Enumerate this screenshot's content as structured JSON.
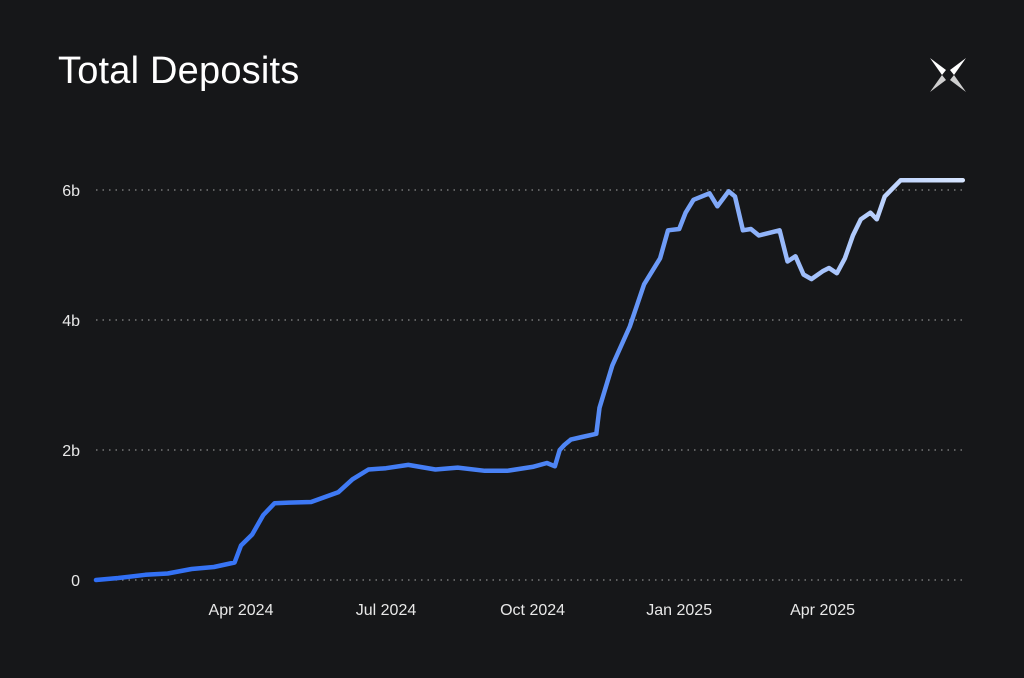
{
  "title": "Total Deposits",
  "logo": "butterfly-logo-icon",
  "colors": {
    "background": "#161719",
    "line_start": "#2f6ef5",
    "line_end": "#cfe0ff",
    "grid": "#8a8a8a",
    "text": "#ffffff"
  },
  "chart_data": {
    "type": "line",
    "title": "Total Deposits",
    "xlabel": "",
    "ylabel": "",
    "ylim": [
      0,
      6
    ],
    "xlim": [
      "2024-01-01",
      "2025-06-30"
    ],
    "y_ticks": [
      {
        "value": 0,
        "label": "0"
      },
      {
        "value": 2,
        "label": "2b"
      },
      {
        "value": 4,
        "label": "4b"
      },
      {
        "value": 6,
        "label": "6b"
      }
    ],
    "x_ticks": [
      {
        "date": "2024-04-01",
        "label": "Apr 2024"
      },
      {
        "date": "2024-07-01",
        "label": "Jul 2024"
      },
      {
        "date": "2024-10-01",
        "label": "Oct 2024"
      },
      {
        "date": "2025-01-01",
        "label": "Jan 2025"
      },
      {
        "date": "2025-04-01",
        "label": "Apr 2025"
      }
    ],
    "grid": "horizontal dotted",
    "series": [
      {
        "x": [
          "2024-01-01",
          "2024-01-15",
          "2024-02-01",
          "2024-02-15",
          "2024-03-01",
          "2024-03-15",
          "2024-03-28",
          "2024-04-01",
          "2024-04-08",
          "2024-04-15",
          "2024-04-22",
          "2024-05-01",
          "2024-05-15",
          "2024-06-01",
          "2024-06-10",
          "2024-06-20",
          "2024-07-01",
          "2024-07-15",
          "2024-08-01",
          "2024-08-15",
          "2024-09-01",
          "2024-09-15",
          "2024-10-01",
          "2024-10-10",
          "2024-10-15",
          "2024-10-18",
          "2024-10-21",
          "2024-10-25",
          "2024-11-01",
          "2024-11-10",
          "2024-11-12",
          "2024-11-20",
          "2024-12-01",
          "2024-12-10",
          "2024-12-15",
          "2024-12-20",
          "2024-12-25",
          "2025-01-01",
          "2025-01-05",
          "2025-01-10",
          "2025-01-20",
          "2025-01-25",
          "2025-02-01",
          "2025-02-05",
          "2025-02-10",
          "2025-02-15",
          "2025-02-20",
          "2025-02-28",
          "2025-03-05",
          "2025-03-10",
          "2025-03-15",
          "2025-03-20",
          "2025-03-25",
          "2025-04-01",
          "2025-04-05",
          "2025-04-10",
          "2025-04-15",
          "2025-04-20",
          "2025-04-25",
          "2025-05-01",
          "2025-05-05",
          "2025-05-10",
          "2025-05-20",
          "2025-06-01",
          "2025-06-10",
          "2025-06-15",
          "2025-06-20",
          "2025-06-28"
        ],
        "y": [
          0.0,
          0.03,
          0.08,
          0.1,
          0.17,
          0.2,
          0.27,
          0.53,
          0.7,
          1.0,
          1.18,
          1.19,
          1.2,
          1.35,
          1.55,
          1.7,
          1.72,
          1.77,
          1.7,
          1.73,
          1.68,
          1.68,
          1.74,
          1.8,
          1.75,
          2.0,
          2.08,
          2.16,
          2.2,
          2.25,
          2.65,
          3.3,
          3.9,
          4.55,
          4.75,
          4.95,
          5.38,
          5.4,
          5.65,
          5.85,
          5.95,
          5.75,
          5.98,
          5.9,
          5.38,
          5.4,
          5.3,
          5.35,
          5.38,
          4.9,
          4.98,
          4.7,
          4.63,
          4.75,
          4.8,
          4.72,
          4.95,
          5.3,
          5.55,
          5.65,
          5.55,
          5.9,
          6.15,
          6.15,
          6.15,
          6.15,
          6.15,
          6.15
        ]
      }
    ]
  }
}
